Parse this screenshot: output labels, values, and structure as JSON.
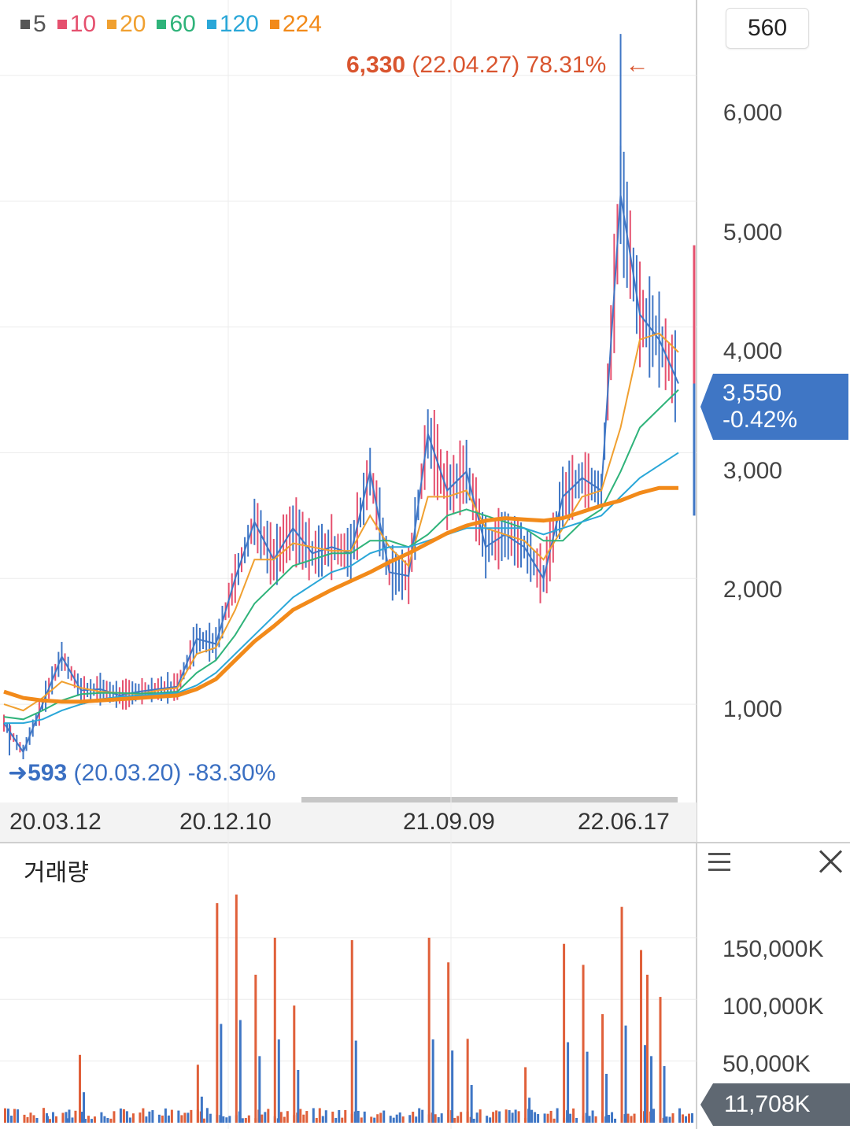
{
  "legend": [
    {
      "label": "5",
      "color": "#555555"
    },
    {
      "label": "10",
      "color": "#e5506e"
    },
    {
      "label": "20",
      "color": "#f0a030"
    },
    {
      "label": "60",
      "color": "#2fb37a"
    },
    {
      "label": "120",
      "color": "#2aa7d8"
    },
    {
      "label": "224",
      "color": "#f28a1a"
    }
  ],
  "period": "560",
  "high": {
    "value": "6,330",
    "date": "(22.04.27)",
    "pct": "78.31%",
    "arrow": "←"
  },
  "low": {
    "value": "593",
    "date": "(20.03.20)",
    "pct": "-83.30%",
    "arrow": "➜"
  },
  "current": {
    "price": "3,550",
    "change": "-0.42%"
  },
  "volume_title": "거래량",
  "volume_current": "11,708K",
  "chart_data": {
    "type": "candlestick",
    "price_axis": {
      "ticks": [
        "6,000",
        "5,000",
        "4,000",
        "3,000",
        "2,000",
        "1,000"
      ],
      "values": [
        6000,
        5000,
        4000,
        3000,
        2000,
        1000
      ],
      "ylim": [
        250,
        6550
      ]
    },
    "x_ticks": [
      "20.03.12",
      "20.12.10",
      "21.09.09",
      "22.06.17"
    ],
    "grid": true,
    "legend_position": "top-left",
    "price_series": {
      "name": "price",
      "points": [
        [
          "20.03.12",
          850
        ],
        [
          "20.03.20",
          620
        ],
        [
          "20.05",
          1000
        ],
        [
          "20.06",
          1380
        ],
        [
          "20.07",
          1110
        ],
        [
          "20.08",
          1120
        ],
        [
          "20.09",
          1070
        ],
        [
          "20.10",
          1100
        ],
        [
          "20.11",
          1120
        ],
        [
          "20.12.10",
          1140
        ],
        [
          "20.12",
          1520
        ],
        [
          "21.01",
          1480
        ],
        [
          "21.02",
          2000
        ],
        [
          "21.02b",
          2450
        ],
        [
          "21.03",
          2150
        ],
        [
          "21.04",
          2400
        ],
        [
          "21.05",
          2200
        ],
        [
          "21.06",
          2250
        ],
        [
          "21.07",
          2200
        ],
        [
          "21.07b",
          2850
        ],
        [
          "21.08",
          2050
        ],
        [
          "21.09.09",
          2020
        ],
        [
          "21.09",
          3150
        ],
        [
          "21.10",
          2700
        ],
        [
          "21.11",
          2850
        ],
        [
          "21.12",
          2250
        ],
        [
          "22.01",
          2350
        ],
        [
          "22.02",
          2250
        ],
        [
          "22.02b",
          2000
        ],
        [
          "22.03",
          2650
        ],
        [
          "22.03b",
          2800
        ],
        [
          "22.04",
          2700
        ],
        [
          "22.04.27",
          5050
        ],
        [
          "22.05",
          4100
        ],
        [
          "22.06",
          3900
        ],
        [
          "22.06.17",
          3550
        ]
      ]
    },
    "moving_averages": [
      {
        "name": "20",
        "points": [
          1000,
          950,
          1050,
          1180,
          1130,
          1100,
          1090,
          1080,
          1110,
          1130,
          1400,
          1450,
          1750,
          2150,
          2150,
          2280,
          2250,
          2220,
          2220,
          2500,
          2250,
          2100,
          2650,
          2650,
          2700,
          2400,
          2350,
          2300,
          2150,
          2400,
          2650,
          2700,
          3200,
          3900,
          3950,
          3800
        ]
      },
      {
        "name": "60",
        "points": [
          900,
          880,
          950,
          1030,
          1080,
          1090,
          1090,
          1085,
          1090,
          1100,
          1250,
          1350,
          1550,
          1800,
          1950,
          2100,
          2150,
          2200,
          2200,
          2300,
          2300,
          2250,
          2350,
          2500,
          2550,
          2500,
          2450,
          2400,
          2300,
          2300,
          2450,
          2550,
          2850,
          3200,
          3350,
          3500
        ]
      },
      {
        "name": "120",
        "points": [
          850,
          850,
          880,
          950,
          1000,
          1040,
          1060,
          1070,
          1080,
          1090,
          1150,
          1250,
          1400,
          1550,
          1700,
          1850,
          1950,
          2050,
          2100,
          2200,
          2250,
          2250,
          2300,
          2350,
          2400,
          2400,
          2400,
          2400,
          2350,
          2400,
          2450,
          2500,
          2650,
          2800,
          2900,
          3000
        ]
      },
      {
        "name": "224",
        "points": [
          1100,
          1050,
          1030,
          1020,
          1020,
          1030,
          1040,
          1050,
          1060,
          1070,
          1120,
          1200,
          1350,
          1500,
          1620,
          1750,
          1830,
          1910,
          1980,
          2050,
          2130,
          2200,
          2280,
          2360,
          2420,
          2460,
          2480,
          2470,
          2460,
          2480,
          2530,
          2580,
          2620,
          2680,
          2720,
          2720
        ]
      }
    ],
    "volume": {
      "axis_ticks": [
        "150,000K",
        "100,000K",
        "50,000K"
      ],
      "axis_values": [
        150000,
        100000,
        50000
      ],
      "ylim": [
        0,
        185000
      ],
      "unit": "K",
      "spikes": [
        {
          "x": "20.04",
          "value": 55000
        },
        {
          "x": "20.05",
          "value": 12000
        },
        {
          "x": "20.06",
          "value": 8000
        },
        {
          "x": "20.12",
          "value": 47000
        },
        {
          "x": "21.01",
          "value": 178000
        },
        {
          "x": "21.02",
          "value": 185000
        },
        {
          "x": "21.02b",
          "value": 120000
        },
        {
          "x": "21.03",
          "value": 150000
        },
        {
          "x": "21.04",
          "value": 95000
        },
        {
          "x": "21.07",
          "value": 148000
        },
        {
          "x": "21.09",
          "value": 150000
        },
        {
          "x": "21.10",
          "value": 130000
        },
        {
          "x": "21.11",
          "value": 68000
        },
        {
          "x": "22.02",
          "value": 45000
        },
        {
          "x": "22.03",
          "value": 145000
        },
        {
          "x": "22.03b",
          "value": 128000
        },
        {
          "x": "22.04",
          "value": 88000
        },
        {
          "x": "22.04.27",
          "value": 175000
        },
        {
          "x": "22.05",
          "value": 140000
        },
        {
          "x": "22.05b",
          "value": 120000
        },
        {
          "x": "22.06",
          "value": 102000
        }
      ]
    }
  }
}
